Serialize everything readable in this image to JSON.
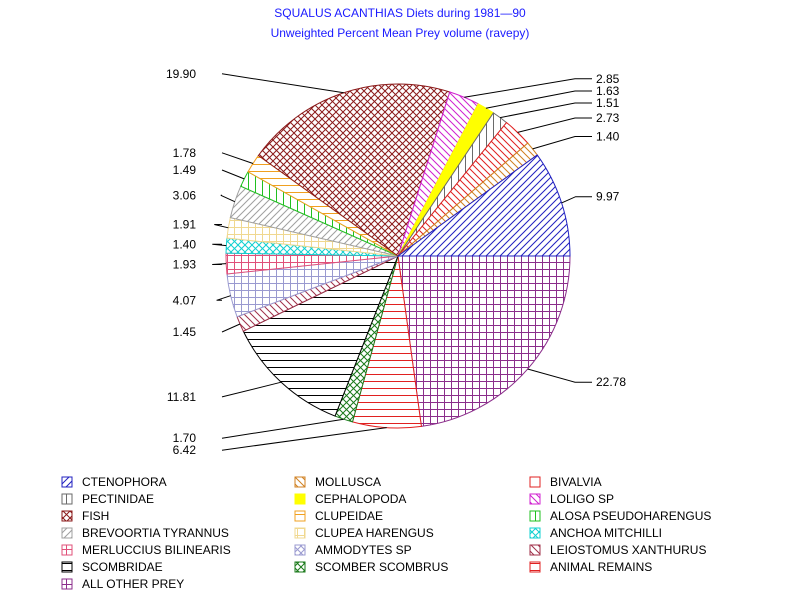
{
  "chart_data": {
    "type": "pie",
    "title": "SQUALUS ACANTHIAS Diets during 1981—90",
    "subtitle": "Unweighted Percent Mean Prey volume (ravepy)",
    "slices": [
      {
        "name": "ALL OTHER PREY",
        "value": 22.78,
        "label": "22.78",
        "color": "#8b2e8b",
        "pattern": "grid"
      },
      {
        "name": "ANIMAL REMAINS",
        "value": 6.42,
        "label": "6.42",
        "color": "#e02020",
        "pattern": "hlines"
      },
      {
        "name": "SCOMBER SCOMBRUS",
        "value": 1.7,
        "label": "1.70",
        "color": "#1a7a1a",
        "pattern": "xgrid"
      },
      {
        "name": "SCOMBRIDAE",
        "value": 11.81,
        "label": "11.81",
        "color": "#000000",
        "pattern": "hlines"
      },
      {
        "name": "LEIOSTOMUS XANTHURUS",
        "value": 1.45,
        "label": "1.45",
        "color": "#a0304a",
        "pattern": "bslash"
      },
      {
        "name": "AMMODYTES SP",
        "value": 4.07,
        "label": "4.07",
        "color": "#9a9ad0",
        "pattern": "grid"
      },
      {
        "name": "MERLUCCIUS BILINEARIS",
        "value": 1.93,
        "label": "1.93",
        "color": "#e0507a",
        "pattern": "grid"
      },
      {
        "name": "ANCHOA MITCHILLI",
        "value": 1.4,
        "label": "1.40",
        "color": "#10d0d0",
        "pattern": "xgrid"
      },
      {
        "name": "CLUPEA HARENGUS",
        "value": 1.91,
        "label": "1.91",
        "color": "#f0d890",
        "pattern": "grid"
      },
      {
        "name": "BREVOORTIA TYRANNUS",
        "value": 3.06,
        "label": "3.06",
        "color": "#a0a0a0",
        "pattern": "slash"
      },
      {
        "name": "ALOSA PSEUDOHARENGUS",
        "value": 1.49,
        "label": "1.49",
        "color": "#20c020",
        "pattern": "vlines"
      },
      {
        "name": "CLUPEIDAE",
        "value": 1.78,
        "label": "1.78",
        "color": "#f0a020",
        "pattern": "hlines"
      },
      {
        "name": "FISH",
        "value": 19.9,
        "label": "19.90",
        "color": "#8b1a1a",
        "pattern": "xgrid"
      },
      {
        "name": "LOLIGO SP",
        "value": 2.85,
        "label": "2.85",
        "color": "#d020d0",
        "pattern": "bslash"
      },
      {
        "name": "CEPHALOPODA",
        "value": 1.63,
        "label": "1.63",
        "color": "#ffff00",
        "pattern": "solid"
      },
      {
        "name": "PECTINIDAE",
        "value": 1.51,
        "label": "1.51",
        "color": "#6a6a6a",
        "pattern": "vlines"
      },
      {
        "name": "BIVALVIA",
        "value": 2.73,
        "label": "2.73",
        "color": "#e02020",
        "pattern": "bslash"
      },
      {
        "name": "MOLLUSCA",
        "value": 1.4,
        "label": "1.40",
        "color": "#d08020",
        "pattern": "bslash"
      },
      {
        "name": "CTENOPHORA",
        "value": 9.97,
        "label": "9.97",
        "color": "#2020c0",
        "pattern": "slash"
      }
    ],
    "legend": [
      {
        "name": "CTENOPHORA",
        "color": "#2020c0",
        "pattern": "slash"
      },
      {
        "name": "MOLLUSCA",
        "color": "#d08020",
        "pattern": "bslash"
      },
      {
        "name": "BIVALVIA",
        "color": "#e02020",
        "pattern": "hollow"
      },
      {
        "name": "PECTINIDAE",
        "color": "#6a6a6a",
        "pattern": "vlines"
      },
      {
        "name": "CEPHALOPODA",
        "color": "#ffff00",
        "pattern": "solid"
      },
      {
        "name": "LOLIGO SP",
        "color": "#d020d0",
        "pattern": "bslash"
      },
      {
        "name": "FISH",
        "color": "#8b1a1a",
        "pattern": "xgrid"
      },
      {
        "name": "CLUPEIDAE",
        "color": "#f0a020",
        "pattern": "hlines"
      },
      {
        "name": "ALOSA PSEUDOHARENGUS",
        "color": "#20c020",
        "pattern": "vlines"
      },
      {
        "name": "BREVOORTIA TYRANNUS",
        "color": "#a0a0a0",
        "pattern": "slash"
      },
      {
        "name": "CLUPEA HARENGUS",
        "color": "#f0d890",
        "pattern": "grid"
      },
      {
        "name": "ANCHOA MITCHILLI",
        "color": "#10d0d0",
        "pattern": "xgrid"
      },
      {
        "name": "MERLUCCIUS BILINEARIS",
        "color": "#e0507a",
        "pattern": "grid"
      },
      {
        "name": "AMMODYTES SP",
        "color": "#9a9ad0",
        "pattern": "xgrid"
      },
      {
        "name": "LEIOSTOMUS XANTHURUS",
        "color": "#a0304a",
        "pattern": "bslash"
      },
      {
        "name": "SCOMBRIDAE",
        "color": "#000000",
        "pattern": "hlines"
      },
      {
        "name": "SCOMBER SCOMBRUS",
        "color": "#1a7a1a",
        "pattern": "xgrid"
      },
      {
        "name": "ANIMAL REMAINS",
        "color": "#e02020",
        "pattern": "hlines"
      },
      {
        "name": "ALL OTHER PREY",
        "color": "#8b2e8b",
        "pattern": "grid"
      }
    ]
  }
}
